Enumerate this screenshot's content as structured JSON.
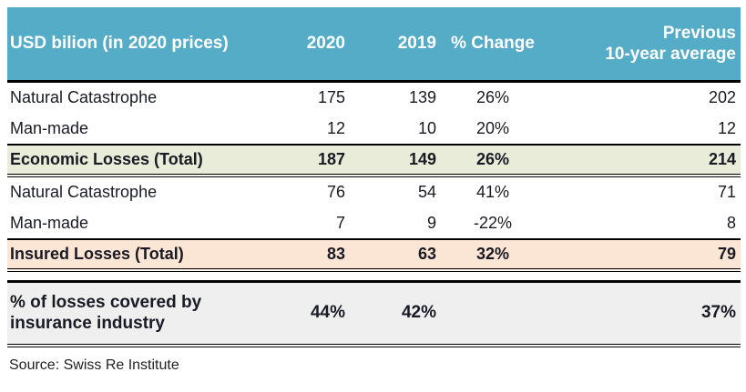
{
  "header": {
    "usd": "USD bilion (in 2020 prices)",
    "y2020": "2020",
    "y2019": "2019",
    "change": "% Change",
    "prev_line1": "Previous",
    "prev_line2": "10-year average"
  },
  "chart_data": {
    "type": "table",
    "title": "",
    "columns": [
      "USD bilion (in 2020 prices)",
      "2020",
      "2019",
      "% Change",
      "Previous 10-year average"
    ],
    "rows": [
      [
        "Natural Catastrophe",
        "175",
        "139",
        "26%",
        "202"
      ],
      [
        "Man-made",
        "12",
        "10",
        "20%",
        "12"
      ],
      [
        "Economic Losses (Total)",
        "187",
        "149",
        "26%",
        "214"
      ],
      [
        "Natural Catastrophe",
        "76",
        "54",
        "41%",
        "71"
      ],
      [
        "Man-made",
        "7",
        "9",
        "-22%",
        "8"
      ],
      [
        "Insured Losses (Total)",
        "83",
        "63",
        "32%",
        "79"
      ],
      [
        "% of losses covered by insurance industry",
        "44%",
        "42%",
        "",
        "37%"
      ]
    ],
    "row_styles": [
      "normal",
      "normal",
      "total-green",
      "normal",
      "normal",
      "total-peach",
      "summary-gray"
    ],
    "source": "Source: Swiss Re Institute"
  },
  "colors": {
    "header_bg": "#55acc6",
    "header_text": "#ffffff",
    "economic_total_bg": "#e8ecd9",
    "insured_total_bg": "#fbe5d4",
    "summary_bg": "#efefef",
    "border": "#000000",
    "body_text": "#1a1a24"
  },
  "source": "Source: Swiss Re Institute"
}
